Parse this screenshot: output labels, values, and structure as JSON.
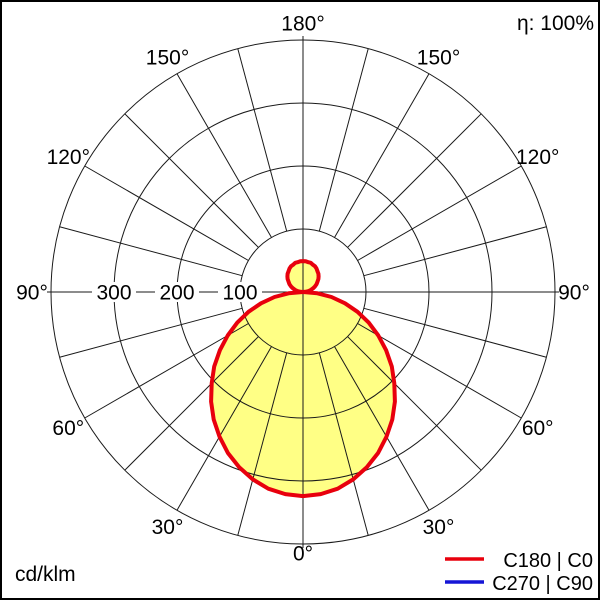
{
  "header": {
    "efficiency": "η: 100%"
  },
  "footer": {
    "unit": "cd/klm"
  },
  "legend": {
    "entries": [
      {
        "label": "C180 | C0",
        "color": "#e8000d"
      },
      {
        "label": "C270 | C90",
        "color": "#1515d6"
      }
    ]
  },
  "chart_data": {
    "type": "polar",
    "subtype": "photometric-intensity-distribution",
    "unit": "cd/klm",
    "efficiency_text": "η: 100%",
    "radial_axis": {
      "ticks": [
        300,
        200,
        100
      ],
      "max": 400,
      "grid_rings": [
        100,
        200,
        300,
        400
      ]
    },
    "angle_step_spokes_deg": 15,
    "angle_labels": [
      {
        "text": "180°",
        "phi": 0
      },
      {
        "text": "150°",
        "phi": -30
      },
      {
        "text": "150°",
        "phi": 30
      },
      {
        "text": "120°",
        "phi": -60
      },
      {
        "text": "120°",
        "phi": 60
      },
      {
        "text": "90°",
        "phi": -90
      },
      {
        "text": "90°",
        "phi": 90
      },
      {
        "text": "60°",
        "phi": -120
      },
      {
        "text": "60°",
        "phi": 120
      },
      {
        "text": "30°",
        "phi": -150
      },
      {
        "text": "30°",
        "phi": 150
      },
      {
        "text": "0°",
        "phi": 180
      }
    ],
    "series": [
      {
        "name": "C180 | C0",
        "color": "#e8000d",
        "fill": "#ffff85",
        "visible": true,
        "gamma_start_deg": 0,
        "gamma_step_deg": 5,
        "values_cd_per_klm": [
          324,
          322,
          317,
          308,
          296,
          282,
          265,
          247,
          227,
          205,
          184,
          161,
          138,
          115,
          92,
          69,
          46,
          23,
          0,
          4,
          9,
          13,
          17,
          21,
          25,
          28,
          32,
          35,
          38,
          40,
          43,
          45,
          46,
          48,
          48,
          49,
          49
        ]
      },
      {
        "name": "C270 | C90",
        "color": "#1515d6",
        "visible": false,
        "values_cd_per_klm": null
      }
    ]
  }
}
